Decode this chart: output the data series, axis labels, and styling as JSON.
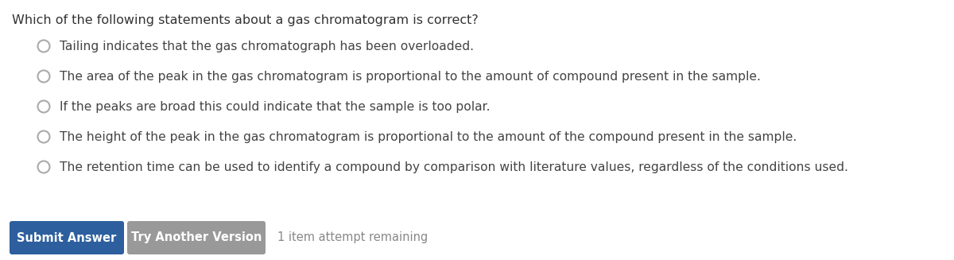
{
  "background_color": "#ffffff",
  "question": "Which of the following statements about a gas chromatogram is correct?",
  "question_color": "#333333",
  "question_fontsize": 11.5,
  "options": [
    "Tailing indicates that the gas chromatograph has been overloaded.",
    "The area of the peak in the gas chromatogram is proportional to the amount of compound present in the sample.",
    "If the peaks are broad this could indicate that the sample is too polar.",
    "The height of the peak in the gas chromatogram is proportional to the amount of the compound present in the sample.",
    "The retention time can be used to identify a compound by comparison with literature values, regardless of the conditions used."
  ],
  "option_color": "#444444",
  "option_fontsize": 11.2,
  "circle_color": "#aaaaaa",
  "submit_btn_color": "#2d5f9e",
  "submit_btn_text": "Submit Answer",
  "submit_btn_text_color": "#ffffff",
  "try_btn_color": "#999999",
  "try_btn_text": "Try Another Version",
  "try_btn_text_color": "#ffffff",
  "attempt_text": "1 item attempt remaining",
  "attempt_text_color": "#888888",
  "attempt_fontsize": 10.5,
  "btn_fontsize": 10.5,
  "fig_width": 12.0,
  "fig_height": 3.27,
  "dpi": 100
}
